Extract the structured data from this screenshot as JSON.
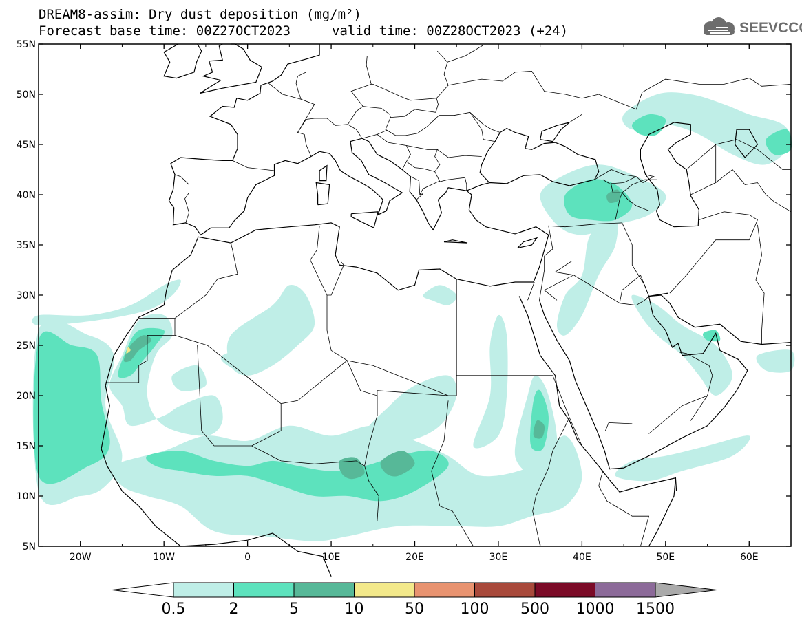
{
  "header": {
    "title": "DREAM8-assim: Dry dust deposition (mg/m²)",
    "forecast_base": "Forecast base time: 00Z27OCT2023",
    "valid": "valid time: 00Z28OCT2023 (+24)"
  },
  "logo": {
    "text": "SEEVCCC",
    "icon": "cloud-icon",
    "color": "#6d6d6d"
  },
  "map": {
    "lon_range": [
      -25,
      65
    ],
    "lat_range": [
      5,
      55
    ],
    "lon_ticks": [
      {
        "value": -20,
        "label": "20W"
      },
      {
        "value": -10,
        "label": "10W"
      },
      {
        "value": 0,
        "label": "0"
      },
      {
        "value": 10,
        "label": "10E"
      },
      {
        "value": 20,
        "label": "20E"
      },
      {
        "value": 30,
        "label": "30E"
      },
      {
        "value": 40,
        "label": "40E"
      },
      {
        "value": 50,
        "label": "50E"
      },
      {
        "value": 60,
        "label": "60E"
      }
    ],
    "lat_ticks": [
      {
        "value": 55,
        "label": "55N"
      },
      {
        "value": 50,
        "label": "50N"
      },
      {
        "value": 45,
        "label": "45N"
      },
      {
        "value": 40,
        "label": "40N"
      },
      {
        "value": 35,
        "label": "35N"
      },
      {
        "value": 30,
        "label": "30N"
      },
      {
        "value": 25,
        "label": "25N"
      },
      {
        "value": 20,
        "label": "20N"
      },
      {
        "value": 15,
        "label": "15N"
      },
      {
        "value": 10,
        "label": "10N"
      },
      {
        "value": 5,
        "label": "5N"
      }
    ],
    "dust_regions": [
      {
        "level": 0,
        "points": [
          [
            -25,
            27
          ],
          [
            -18,
            27.5
          ],
          [
            -12,
            28.5
          ],
          [
            -9,
            30
          ],
          [
            -8,
            31.5
          ],
          [
            -10,
            31
          ],
          [
            -14,
            29
          ],
          [
            -19,
            28
          ],
          [
            -25,
            28
          ]
        ]
      },
      {
        "level": 0,
        "points": [
          [
            -25,
            10.5
          ],
          [
            -20,
            10
          ],
          [
            -17,
            11
          ],
          [
            -15,
            14
          ],
          [
            -17,
            19
          ],
          [
            -16,
            24
          ],
          [
            -19,
            26
          ],
          [
            -25,
            26.5
          ]
        ]
      },
      {
        "level": 1,
        "points": [
          [
            -25,
            12
          ],
          [
            -19,
            13
          ],
          [
            -16.5,
            15
          ],
          [
            -17.5,
            19.5
          ],
          [
            -18,
            24
          ],
          [
            -21,
            25
          ],
          [
            -25,
            25.5
          ]
        ]
      },
      {
        "level": 0,
        "points": [
          [
            -16.5,
            21
          ],
          [
            -15,
            24
          ],
          [
            -13,
            27.5
          ],
          [
            -10,
            28
          ],
          [
            -9,
            26
          ],
          [
            -11,
            24
          ],
          [
            -12,
            20
          ],
          [
            -10,
            17
          ],
          [
            -5,
            16
          ],
          [
            -3,
            17.5
          ],
          [
            -4,
            20
          ],
          [
            -8,
            19
          ],
          [
            -10,
            18
          ],
          [
            -14,
            17
          ],
          [
            -15,
            19
          ]
        ]
      },
      {
        "level": 1,
        "points": [
          [
            -15.5,
            22
          ],
          [
            -14.5,
            24.5
          ],
          [
            -13,
            26.5
          ],
          [
            -10,
            26.5
          ],
          [
            -11,
            25
          ],
          [
            -12.5,
            23.5
          ],
          [
            -14,
            22
          ]
        ]
      },
      {
        "level": 2,
        "points": [
          [
            -14.8,
            23.5
          ],
          [
            -14,
            25
          ],
          [
            -12.5,
            26
          ],
          [
            -11.5,
            25.5
          ],
          [
            -13,
            24.5
          ],
          [
            -14,
            23.5
          ]
        ]
      },
      {
        "level": 3,
        "points": [
          [
            -14.5,
            24.2
          ],
          [
            -14.3,
            24.8
          ],
          [
            -14.0,
            24.5
          ]
        ]
      },
      {
        "level": 0,
        "points": [
          [
            -2,
            26
          ],
          [
            3,
            29
          ],
          [
            5,
            31
          ],
          [
            7,
            30
          ],
          [
            8,
            27
          ],
          [
            6,
            25
          ],
          [
            3,
            23
          ],
          [
            0,
            22
          ],
          [
            -2,
            23
          ]
        ]
      },
      {
        "level": 0,
        "points": [
          [
            -16,
            13
          ],
          [
            -10,
            14.5
          ],
          [
            -5,
            16
          ],
          [
            0,
            15.5
          ],
          [
            5,
            17
          ],
          [
            10,
            16
          ],
          [
            15,
            17
          ],
          [
            20,
            15.5
          ],
          [
            24,
            14
          ],
          [
            28,
            12
          ],
          [
            34,
            13
          ],
          [
            38,
            16
          ],
          [
            40,
            12
          ],
          [
            38,
            9
          ],
          [
            34,
            8
          ],
          [
            30,
            7
          ],
          [
            25,
            7
          ],
          [
            18,
            7
          ],
          [
            12,
            6
          ],
          [
            8,
            5.5
          ],
          [
            2,
            6
          ],
          [
            -4,
            6.5
          ],
          [
            -8,
            9
          ],
          [
            -12,
            10
          ],
          [
            -15,
            11
          ]
        ]
      },
      {
        "level": 1,
        "points": [
          [
            -12,
            14
          ],
          [
            -8,
            14.5
          ],
          [
            -4,
            13.5
          ],
          [
            0,
            13
          ],
          [
            3,
            13.5
          ],
          [
            6,
            13
          ],
          [
            10,
            12.5
          ],
          [
            14,
            13
          ],
          [
            18,
            14
          ],
          [
            22,
            14.5
          ],
          [
            24,
            13
          ],
          [
            20,
            10.5
          ],
          [
            16,
            9.5
          ],
          [
            12,
            10
          ],
          [
            8,
            10
          ],
          [
            4,
            11
          ],
          [
            0,
            12
          ],
          [
            -4,
            12
          ],
          [
            -8,
            12.5
          ],
          [
            -11,
            13
          ]
        ]
      },
      {
        "level": 2,
        "points": [
          [
            16,
            13.5
          ],
          [
            18.5,
            14.5
          ],
          [
            20,
            13.2
          ],
          [
            18,
            12
          ],
          [
            16.5,
            12.3
          ]
        ]
      },
      {
        "level": 2,
        "points": [
          [
            11,
            13.5
          ],
          [
            13,
            13.8
          ],
          [
            14,
            12.3
          ],
          [
            12.5,
            11.7
          ],
          [
            11.3,
            12.2
          ]
        ]
      },
      {
        "level": 0,
        "points": [
          [
            14,
            16
          ],
          [
            17,
            19
          ],
          [
            20,
            21
          ],
          [
            24,
            22
          ],
          [
            25,
            20
          ],
          [
            23,
            17
          ],
          [
            19,
            15.5
          ]
        ]
      },
      {
        "level": 0,
        "points": [
          [
            27,
            15
          ],
          [
            29,
            20
          ],
          [
            29,
            25
          ],
          [
            30,
            28
          ],
          [
            31,
            26
          ],
          [
            31,
            20
          ],
          [
            30,
            16
          ]
        ]
      },
      {
        "level": 0,
        "points": [
          [
            32,
            14
          ],
          [
            33.5,
            20
          ],
          [
            34.5,
            22
          ],
          [
            36,
            20
          ],
          [
            37,
            15
          ],
          [
            35,
            12
          ]
        ]
      },
      {
        "level": 1,
        "points": [
          [
            33.8,
            15.5
          ],
          [
            34.2,
            19.5
          ],
          [
            35,
            20.5
          ],
          [
            36,
            18
          ],
          [
            35.5,
            15
          ],
          [
            34.5,
            14.5
          ]
        ]
      },
      {
        "level": 2,
        "points": [
          [
            34.2,
            16
          ],
          [
            34.6,
            17.5
          ],
          [
            35.5,
            17
          ],
          [
            35.2,
            15.8
          ]
        ]
      },
      {
        "level": 0,
        "points": [
          [
            21,
            30
          ],
          [
            23,
            31
          ],
          [
            25,
            30
          ],
          [
            24,
            29
          ],
          [
            22,
            29.5
          ]
        ]
      },
      {
        "level": 0,
        "points": [
          [
            38,
            30
          ],
          [
            40,
            32
          ],
          [
            41,
            36
          ],
          [
            44,
            38
          ],
          [
            44,
            35
          ],
          [
            42,
            32
          ],
          [
            40,
            28
          ],
          [
            38,
            26
          ],
          [
            37,
            27
          ]
        ]
      },
      {
        "level": 0,
        "points": [
          [
            35,
            40
          ],
          [
            38,
            42
          ],
          [
            42,
            43
          ],
          [
            46,
            42
          ],
          [
            50,
            40
          ],
          [
            48,
            38
          ],
          [
            44,
            37
          ],
          [
            40,
            36
          ],
          [
            37,
            37
          ]
        ]
      },
      {
        "level": 1,
        "points": [
          [
            38,
            40
          ],
          [
            41,
            41.5
          ],
          [
            44,
            41
          ],
          [
            46,
            39
          ],
          [
            44,
            37.5
          ],
          [
            41,
            37.5
          ],
          [
            38.5,
            38
          ]
        ]
      },
      {
        "level": 2,
        "points": [
          [
            43,
            40
          ],
          [
            44.3,
            40.5
          ],
          [
            44.5,
            39.5
          ],
          [
            43.3,
            39.2
          ]
        ]
      },
      {
        "level": 0,
        "points": [
          [
            45,
            48
          ],
          [
            49,
            50
          ],
          [
            53,
            50
          ],
          [
            57,
            49
          ],
          [
            60,
            48
          ],
          [
            64,
            47
          ],
          [
            65,
            45
          ],
          [
            62,
            43
          ],
          [
            58,
            44
          ],
          [
            54,
            46
          ],
          [
            50,
            47
          ],
          [
            46,
            46.5
          ]
        ]
      },
      {
        "level": 1,
        "points": [
          [
            46,
            47
          ],
          [
            48,
            48
          ],
          [
            50,
            47.5
          ],
          [
            49,
            46
          ],
          [
            47,
            46
          ]
        ]
      },
      {
        "level": 1,
        "points": [
          [
            62,
            45.5
          ],
          [
            64.5,
            46.5
          ],
          [
            65,
            44.5
          ],
          [
            63,
            44
          ]
        ]
      },
      {
        "level": 0,
        "points": [
          [
            46,
            30
          ],
          [
            49,
            29
          ],
          [
            52,
            27
          ],
          [
            56,
            25
          ],
          [
            58,
            22
          ],
          [
            56,
            20
          ],
          [
            54,
            22
          ],
          [
            52,
            24
          ],
          [
            49,
            26
          ],
          [
            47,
            28
          ]
        ]
      },
      {
        "level": 1,
        "points": [
          [
            54.5,
            26.2
          ],
          [
            56,
            26.5
          ],
          [
            56.5,
            25.5
          ],
          [
            55,
            25.5
          ]
        ]
      },
      {
        "level": 0,
        "points": [
          [
            61,
            24
          ],
          [
            65,
            24.5
          ],
          [
            65,
            22.5
          ],
          [
            62,
            22.5
          ]
        ]
      },
      {
        "level": 0,
        "points": [
          [
            44,
            12
          ],
          [
            46,
            13.5
          ],
          [
            50,
            14
          ],
          [
            55,
            15
          ],
          [
            60,
            16
          ],
          [
            58,
            14
          ],
          [
            52,
            12.5
          ],
          [
            48,
            11.5
          ]
        ]
      },
      {
        "level": 0,
        "points": [
          [
            -9,
            22
          ],
          [
            -6,
            23
          ],
          [
            -5,
            21
          ],
          [
            -8,
            20.5
          ]
        ]
      },
      {
        "level": 0,
        "points": [
          [
            -3,
            24
          ],
          [
            2,
            25
          ],
          [
            3,
            23.5
          ],
          [
            0,
            22.5
          ],
          [
            -2,
            22.8
          ]
        ]
      }
    ]
  },
  "colorbar": {
    "labels": [
      "0.5",
      "2",
      "5",
      "10",
      "50",
      "100",
      "500",
      "1000",
      "1500"
    ],
    "colors": [
      "#ffffff",
      "#bfeee7",
      "#5de2bd",
      "#57b898",
      "#f3e98b",
      "#e89370",
      "#a8493b",
      "#7b0a27",
      "#8c6a99",
      "#aaaaaa"
    ]
  }
}
